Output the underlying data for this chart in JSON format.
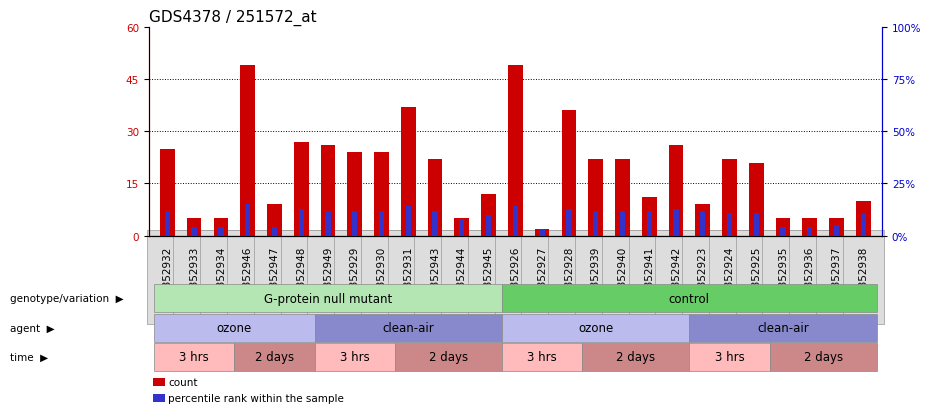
{
  "title": "GDS4378 / 251572_at",
  "samples": [
    "GSM852932",
    "GSM852933",
    "GSM852934",
    "GSM852946",
    "GSM852947",
    "GSM852948",
    "GSM852949",
    "GSM852929",
    "GSM852930",
    "GSM852931",
    "GSM852943",
    "GSM852944",
    "GSM852945",
    "GSM852926",
    "GSM852927",
    "GSM852928",
    "GSM852939",
    "GSM852940",
    "GSM852941",
    "GSM852942",
    "GSM852923",
    "GSM852924",
    "GSM852925",
    "GSM852935",
    "GSM852936",
    "GSM852937",
    "GSM852938"
  ],
  "count_values": [
    25,
    5,
    5,
    49,
    9,
    27,
    26,
    24,
    24,
    37,
    22,
    5,
    12,
    49,
    2,
    36,
    22,
    22,
    11,
    26,
    9,
    22,
    21,
    5,
    5,
    5,
    10
  ],
  "percentile_values": [
    12,
    4,
    4,
    15,
    4,
    13,
    12,
    12,
    12,
    14,
    12,
    8,
    10,
    14,
    3,
    13,
    12,
    12,
    12,
    13,
    12,
    11,
    11,
    4,
    4,
    5,
    11
  ],
  "count_color": "#cc0000",
  "percentile_color": "#3333cc",
  "ylim_left": [
    0,
    60
  ],
  "ylim_right": [
    0,
    100
  ],
  "yticks_left": [
    0,
    15,
    30,
    45,
    60
  ],
  "yticks_right": [
    0,
    25,
    50,
    75,
    100
  ],
  "ytick_labels_left": [
    "0",
    "15",
    "30",
    "45",
    "60"
  ],
  "ytick_labels_right": [
    "0%",
    "25%",
    "50%",
    "75%",
    "100%"
  ],
  "genotype_groups": [
    {
      "label": "G-protein null mutant",
      "start": 0,
      "end": 13,
      "color": "#b3e6b3"
    },
    {
      "label": "control",
      "start": 13,
      "end": 27,
      "color": "#66cc66"
    }
  ],
  "agent_groups": [
    {
      "label": "ozone",
      "start": 0,
      "end": 6,
      "color": "#bbbbee"
    },
    {
      "label": "clean-air",
      "start": 6,
      "end": 13,
      "color": "#8888cc"
    },
    {
      "label": "ozone",
      "start": 13,
      "end": 20,
      "color": "#bbbbee"
    },
    {
      "label": "clean-air",
      "start": 20,
      "end": 27,
      "color": "#8888cc"
    }
  ],
  "time_groups": [
    {
      "label": "3 hrs",
      "start": 0,
      "end": 3,
      "color": "#ffbbbb"
    },
    {
      "label": "2 days",
      "start": 3,
      "end": 6,
      "color": "#cc8888"
    },
    {
      "label": "3 hrs",
      "start": 6,
      "end": 9,
      "color": "#ffbbbb"
    },
    {
      "label": "2 days",
      "start": 9,
      "end": 13,
      "color": "#cc8888"
    },
    {
      "label": "3 hrs",
      "start": 13,
      "end": 16,
      "color": "#ffbbbb"
    },
    {
      "label": "2 days",
      "start": 16,
      "end": 20,
      "color": "#cc8888"
    },
    {
      "label": "3 hrs",
      "start": 20,
      "end": 23,
      "color": "#ffbbbb"
    },
    {
      "label": "2 days",
      "start": 23,
      "end": 27,
      "color": "#cc8888"
    }
  ],
  "legend_items": [
    {
      "label": "count",
      "color": "#cc0000"
    },
    {
      "label": "percentile rank within the sample",
      "color": "#3333cc"
    }
  ],
  "bar_width": 0.55,
  "blue_bar_width": 0.2,
  "background_color": "#ffffff",
  "title_fontsize": 11,
  "tick_fontsize": 7.5,
  "annot_fontsize": 8.5
}
